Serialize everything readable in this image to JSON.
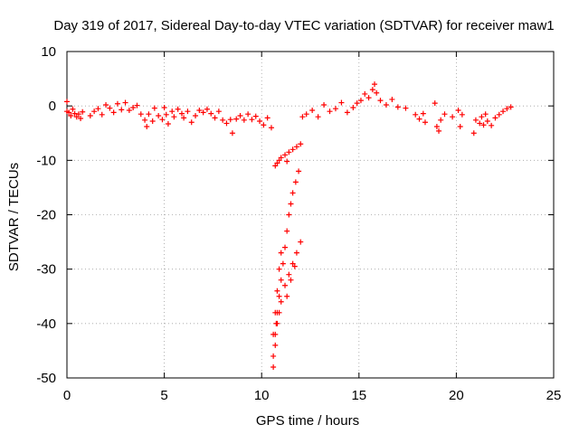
{
  "chart_data": {
    "type": "scatter",
    "title": "Day 319 of 2017, Sidereal Day-to-day VTEC variation (SDTVAR) for receiver maw1",
    "xlabel": "GPS time / hours",
    "ylabel": "SDTVAR / TECUs",
    "xlim": [
      0,
      25
    ],
    "ylim": [
      -50,
      10
    ],
    "xticks": [
      0,
      5,
      10,
      15,
      20,
      25
    ],
    "yticks": [
      -50,
      -40,
      -30,
      -20,
      -10,
      0,
      10
    ],
    "grid": true,
    "marker": "+",
    "series": [
      {
        "name": "SDTVAR",
        "color": "#ff0000",
        "points": [
          [
            0.0,
            -1.0
          ],
          [
            0.1,
            -1.2
          ],
          [
            0.2,
            -1.8
          ],
          [
            0.3,
            -0.6
          ],
          [
            0.4,
            -1.4
          ],
          [
            0.5,
            -2.0
          ],
          [
            0.6,
            -1.5
          ],
          [
            0.7,
            -2.3
          ],
          [
            0.8,
            -1.1
          ],
          [
            0.0,
            0.8
          ],
          [
            1.2,
            -1.8
          ],
          [
            1.4,
            -1.0
          ],
          [
            1.6,
            -0.5
          ],
          [
            1.8,
            -1.6
          ],
          [
            2.0,
            0.2
          ],
          [
            2.2,
            -0.4
          ],
          [
            2.4,
            -1.2
          ],
          [
            2.6,
            0.4
          ],
          [
            2.8,
            -0.7
          ],
          [
            3.0,
            0.6
          ],
          [
            3.2,
            -0.8
          ],
          [
            3.4,
            -0.3
          ],
          [
            3.6,
            0.1
          ],
          [
            3.8,
            -1.5
          ],
          [
            4.0,
            -2.6
          ],
          [
            4.1,
            -3.8
          ],
          [
            4.2,
            -1.5
          ],
          [
            4.4,
            -2.8
          ],
          [
            4.5,
            -0.4
          ],
          [
            4.7,
            -1.8
          ],
          [
            4.9,
            -2.5
          ],
          [
            5.0,
            -0.3
          ],
          [
            5.1,
            -1.6
          ],
          [
            5.2,
            -3.3
          ],
          [
            5.4,
            -1.0
          ],
          [
            5.5,
            -2.0
          ],
          [
            5.7,
            -0.6
          ],
          [
            5.9,
            -1.4
          ],
          [
            6.0,
            -2.2
          ],
          [
            6.2,
            -1.0
          ],
          [
            6.4,
            -3.0
          ],
          [
            6.6,
            -1.8
          ],
          [
            6.8,
            -0.8
          ],
          [
            7.0,
            -1.2
          ],
          [
            7.2,
            -0.6
          ],
          [
            7.4,
            -1.4
          ],
          [
            7.6,
            -2.2
          ],
          [
            7.8,
            -1.0
          ],
          [
            8.0,
            -2.6
          ],
          [
            8.2,
            -3.2
          ],
          [
            8.4,
            -2.5
          ],
          [
            8.5,
            -5.0
          ],
          [
            8.7,
            -2.4
          ],
          [
            8.9,
            -1.8
          ],
          [
            9.1,
            -2.6
          ],
          [
            9.3,
            -1.5
          ],
          [
            9.5,
            -2.5
          ],
          [
            9.7,
            -1.9
          ],
          [
            9.9,
            -2.8
          ],
          [
            10.1,
            -3.5
          ],
          [
            10.3,
            -2.2
          ],
          [
            10.5,
            -4.0
          ],
          [
            10.7,
            -11.0
          ],
          [
            10.8,
            -10.5
          ],
          [
            10.9,
            -10.0
          ],
          [
            11.0,
            -9.5
          ],
          [
            11.2,
            -9.0
          ],
          [
            11.4,
            -8.5
          ],
          [
            11.6,
            -8.0
          ],
          [
            11.8,
            -7.5
          ],
          [
            12.0,
            -7.0
          ],
          [
            11.3,
            -10.2
          ],
          [
            10.6,
            -48.0
          ],
          [
            10.6,
            -46.0
          ],
          [
            10.7,
            -44.0
          ],
          [
            10.7,
            -42.0
          ],
          [
            10.75,
            -40.0
          ],
          [
            10.8,
            -38.0
          ],
          [
            10.9,
            -35.0
          ],
          [
            11.0,
            -32.0
          ],
          [
            11.1,
            -29.0
          ],
          [
            11.2,
            -26.0
          ],
          [
            11.3,
            -23.0
          ],
          [
            11.4,
            -20.0
          ],
          [
            11.5,
            -18.0
          ],
          [
            11.6,
            -16.0
          ],
          [
            11.75,
            -14.0
          ],
          [
            11.9,
            -12.0
          ],
          [
            10.6,
            -42.0
          ],
          [
            10.7,
            -38.0
          ],
          [
            10.8,
            -34.0
          ],
          [
            10.9,
            -30.0
          ],
          [
            11.0,
            -27.0
          ],
          [
            10.8,
            -40.0
          ],
          [
            10.9,
            -38.0
          ],
          [
            11.0,
            -36.0
          ],
          [
            11.2,
            -33.0
          ],
          [
            11.4,
            -31.0
          ],
          [
            11.6,
            -29.0
          ],
          [
            11.8,
            -27.0
          ],
          [
            12.0,
            -25.0
          ],
          [
            11.3,
            -35.0
          ],
          [
            11.5,
            -32.0
          ],
          [
            11.7,
            -29.5
          ],
          [
            12.1,
            -2.0
          ],
          [
            12.3,
            -1.5
          ],
          [
            12.6,
            -0.8
          ],
          [
            12.9,
            -2.0
          ],
          [
            13.2,
            0.2
          ],
          [
            13.5,
            -1.0
          ],
          [
            13.8,
            -0.5
          ],
          [
            14.1,
            0.6
          ],
          [
            14.4,
            -1.2
          ],
          [
            14.7,
            -0.3
          ],
          [
            14.9,
            0.5
          ],
          [
            15.1,
            1.0
          ],
          [
            15.3,
            2.2
          ],
          [
            15.5,
            1.5
          ],
          [
            15.7,
            3.0
          ],
          [
            15.8,
            4.0
          ],
          [
            15.9,
            2.4
          ],
          [
            16.1,
            1.0
          ],
          [
            16.4,
            0.2
          ],
          [
            16.7,
            1.2
          ],
          [
            17.0,
            -0.2
          ],
          [
            17.4,
            -0.4
          ],
          [
            17.9,
            -1.6
          ],
          [
            18.1,
            -2.4
          ],
          [
            18.3,
            -1.4
          ],
          [
            18.4,
            -3.0
          ],
          [
            18.9,
            0.5
          ],
          [
            19.0,
            -3.8
          ],
          [
            19.1,
            -4.6
          ],
          [
            19.2,
            -2.6
          ],
          [
            19.4,
            -1.5
          ],
          [
            19.8,
            -2.0
          ],
          [
            20.1,
            -0.8
          ],
          [
            20.2,
            -3.8
          ],
          [
            20.3,
            -1.6
          ],
          [
            20.9,
            -5.0
          ],
          [
            21.0,
            -2.6
          ],
          [
            21.2,
            -3.2
          ],
          [
            21.3,
            -2.0
          ],
          [
            21.4,
            -3.5
          ],
          [
            21.5,
            -1.5
          ],
          [
            21.6,
            -2.8
          ],
          [
            21.8,
            -3.6
          ],
          [
            22.0,
            -2.2
          ],
          [
            22.2,
            -1.6
          ],
          [
            22.4,
            -1.0
          ],
          [
            22.6,
            -0.5
          ],
          [
            22.8,
            -0.2
          ]
        ]
      }
    ]
  }
}
